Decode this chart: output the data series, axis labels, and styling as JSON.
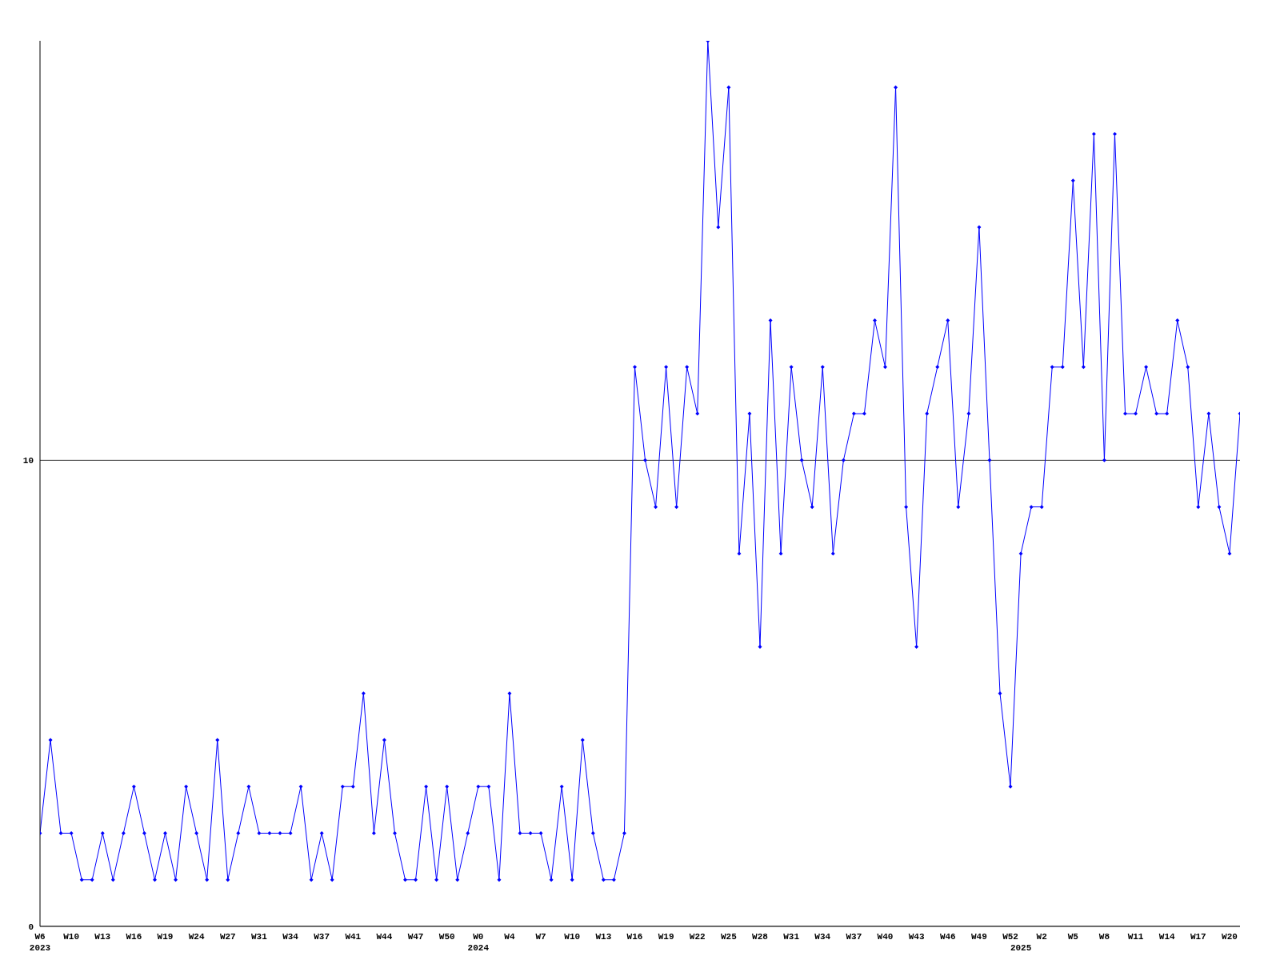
{
  "chart_data": {
    "type": "line",
    "categories": [
      "W6\n2023",
      null,
      null,
      "W10",
      null,
      null,
      "W13",
      null,
      null,
      "W16",
      null,
      null,
      "W19",
      null,
      null,
      "W24",
      null,
      null,
      "W27",
      null,
      null,
      "W31",
      null,
      null,
      "W34",
      null,
      null,
      "W37",
      null,
      null,
      "W41",
      null,
      null,
      "W44",
      null,
      null,
      "W47",
      null,
      null,
      "W50",
      null,
      null,
      "W0\n2024",
      null,
      null,
      "W4",
      null,
      null,
      "W7",
      null,
      null,
      "W10",
      null,
      null,
      "W13",
      null,
      null,
      "W16",
      null,
      null,
      "W19",
      null,
      null,
      "W22",
      null,
      null,
      "W25",
      null,
      null,
      "W28",
      null,
      null,
      "W31",
      null,
      null,
      "W34",
      null,
      null,
      "W37",
      null,
      null,
      "W40",
      null,
      null,
      "W43",
      null,
      null,
      "W46",
      null,
      null,
      "W49",
      null,
      null,
      "W52",
      "\n2025",
      null,
      "W2",
      null,
      null,
      "W5",
      null,
      null,
      "W8",
      null,
      null,
      "W11",
      null,
      null,
      "W14",
      null,
      null,
      "W17",
      null,
      null,
      "W20",
      null
    ],
    "series": [
      {
        "color": "#0000ff",
        "values": [
          2,
          4,
          2,
          2,
          1,
          1,
          2,
          1,
          2,
          3,
          2,
          1,
          2,
          1,
          3,
          2,
          1,
          4,
          1,
          2,
          3,
          2,
          2,
          2,
          2,
          3,
          1,
          2,
          1,
          3,
          3,
          5,
          2,
          4,
          2,
          1,
          1,
          3,
          1,
          3,
          1,
          2,
          3,
          3,
          1,
          5,
          2,
          2,
          2,
          1,
          3,
          1,
          4,
          2,
          1,
          1,
          2,
          12,
          10,
          9,
          12,
          9,
          12,
          11,
          19,
          15,
          18,
          8,
          11,
          6,
          13,
          8,
          12,
          10,
          9,
          12,
          8,
          10,
          11,
          11,
          13,
          12,
          18,
          9,
          6,
          11,
          12,
          13,
          9,
          11,
          15,
          10,
          5,
          3,
          8,
          9,
          9,
          12,
          12,
          16,
          12,
          17,
          10,
          17,
          11,
          11,
          12,
          11,
          11,
          13,
          12,
          9,
          11,
          9,
          8,
          11
        ]
      }
    ],
    "ylim": [
      0,
      19
    ],
    "yticks": [
      0,
      10
    ],
    "grid": "y",
    "marker": "diamond",
    "line_style": "solid",
    "legend": false
  }
}
